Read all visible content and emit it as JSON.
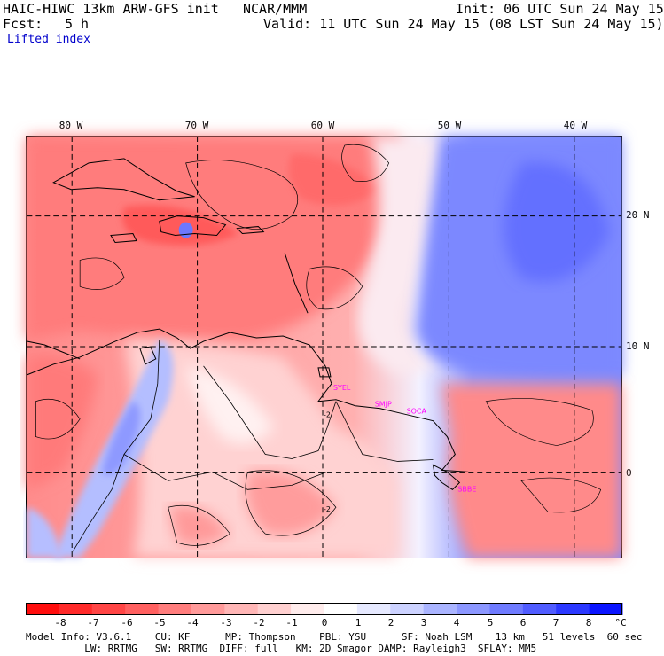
{
  "header": {
    "title": "HAIC-HIWC 13km ARW-GFS init",
    "org": "NCAR/MMM",
    "init": "Init: 06 UTC Sun 24 May 15",
    "fcst_label": "Fcst:",
    "fcst_value": "5 h",
    "valid": "Valid: 11 UTC Sun 24 May 15 (08 LST Sun 24 May 15)",
    "field": "Lifted index"
  },
  "map": {
    "longitude_labels": [
      "80 W",
      "70 W",
      "60 W",
      "50 W",
      "40 W"
    ],
    "latitude_labels": [
      "20 N",
      "10 N",
      "0"
    ],
    "stations": [
      "SYEL",
      "SMJP",
      "SOCA",
      "SBBE"
    ],
    "contour_labels": [
      "-2",
      "-2"
    ]
  },
  "colorbar": {
    "ticks": [
      "-8",
      "-7",
      "-6",
      "-5",
      "-4",
      "-3",
      "-2",
      "-1",
      "0",
      "1",
      "2",
      "3",
      "4",
      "5",
      "6",
      "7",
      "8"
    ],
    "unit": "°C",
    "colors": [
      "#ff0d0d",
      "#ff2a2a",
      "#ff4545",
      "#ff6060",
      "#ff7d7d",
      "#ff9a9a",
      "#ffb6b6",
      "#ffd0d0",
      "#ffecec",
      "#ffffff",
      "#e6e9ff",
      "#ccd2ff",
      "#aab4ff",
      "#8c97ff",
      "#6f7bff",
      "#505cff",
      "#2b38ff",
      "#0a14ff"
    ]
  },
  "footer": {
    "line1": "Model Info: V3.6.1    CU: KF      MP: Thompson    PBL: YSU      SF: Noah LSM    13 km   51 levels  60 sec",
    "line2": "          LW: RRTMG   SW: RRTMG  DIFF: full   KM: 2D Smagor DAMP: Rayleigh3  SFLAY: MM5"
  }
}
